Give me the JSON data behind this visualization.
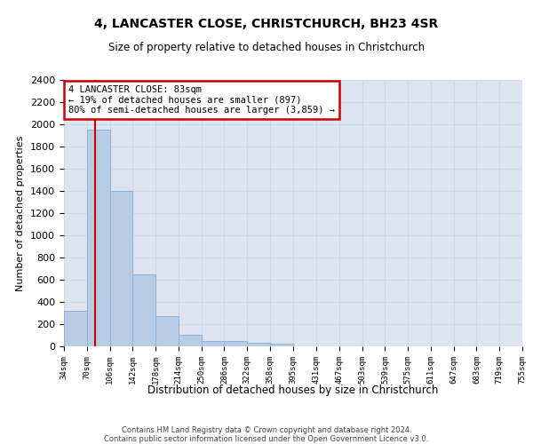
{
  "title": "4, LANCASTER CLOSE, CHRISTCHURCH, BH23 4SR",
  "subtitle": "Size of property relative to detached houses in Christchurch",
  "xlabel": "Distribution of detached houses by size in Christchurch",
  "ylabel": "Number of detached properties",
  "bin_edges": [
    34,
    70,
    106,
    142,
    178,
    214,
    250,
    286,
    322,
    358,
    395,
    431,
    467,
    503,
    539,
    575,
    611,
    647,
    683,
    719,
    755
  ],
  "bar_heights": [
    320,
    1950,
    1400,
    650,
    275,
    105,
    50,
    45,
    35,
    25,
    0,
    0,
    0,
    0,
    0,
    0,
    0,
    0,
    0,
    0
  ],
  "bar_color": "#b8cce4",
  "bar_edgecolor": "#8db3d9",
  "property_size": 83,
  "vline_color": "#cc0000",
  "annotation_line1": "4 LANCASTER CLOSE: 83sqm",
  "annotation_line2": "← 19% of detached houses are smaller (897)",
  "annotation_line3": "80% of semi-detached houses are larger (3,859) →",
  "annotation_box_color": "#cc0000",
  "annotation_text_color": "#000000",
  "ylim": [
    0,
    2400
  ],
  "yticks": [
    0,
    200,
    400,
    600,
    800,
    1000,
    1200,
    1400,
    1600,
    1800,
    2000,
    2200,
    2400
  ],
  "grid_color": "#d0d8e8",
  "background_color": "#dde4f0",
  "footer_line1": "Contains HM Land Registry data © Crown copyright and database right 2024.",
  "footer_line2": "Contains public sector information licensed under the Open Government Licence v3.0."
}
